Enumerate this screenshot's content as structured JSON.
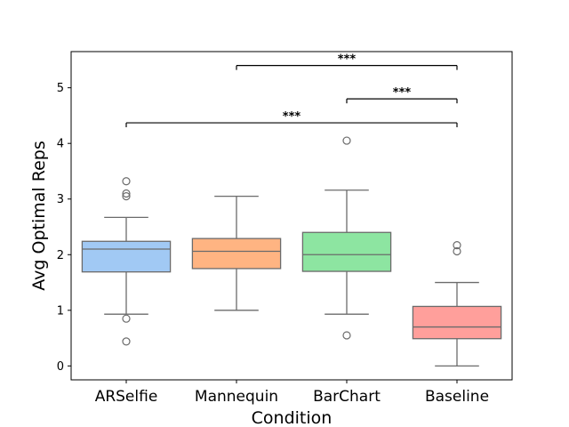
{
  "chart_data": {
    "type": "box",
    "title": "",
    "xlabel": "Condition",
    "ylabel": "Avg Optimal Reps",
    "ylim": [
      -0.25,
      5.65
    ],
    "yticks": [
      0,
      1,
      2,
      3,
      4,
      5
    ],
    "tick_labels": [
      "0",
      "1",
      "2",
      "3",
      "4",
      "5"
    ],
    "grid": false,
    "legend": "none",
    "categories": [
      "ARSelfie",
      "Mannequin",
      "BarChart",
      "Baseline"
    ],
    "boxes": [
      {
        "name": "ARSelfie",
        "color": "#a1c9f4",
        "whisker_low": 0.93,
        "q1": 1.69,
        "median": 2.1,
        "q3": 2.24,
        "whisker_high": 2.67,
        "outliers": [
          0.44,
          0.85,
          3.05,
          3.1,
          3.32
        ]
      },
      {
        "name": "Mannequin",
        "color": "#ffb482",
        "whisker_low": 1.0,
        "q1": 1.75,
        "median": 2.06,
        "q3": 2.29,
        "whisker_high": 3.05,
        "outliers": []
      },
      {
        "name": "BarChart",
        "color": "#8de5a1",
        "whisker_low": 0.93,
        "q1": 1.7,
        "median": 2.0,
        "q3": 2.4,
        "whisker_high": 3.16,
        "outliers": [
          0.55,
          4.05
        ]
      },
      {
        "name": "Baseline",
        "color": "#ff9f9b",
        "whisker_low": 0.0,
        "q1": 0.49,
        "median": 0.7,
        "q3": 1.07,
        "whisker_high": 1.5,
        "outliers": [
          2.06,
          2.17
        ]
      }
    ],
    "significance": [
      {
        "from": "Mannequin",
        "to": "Baseline",
        "y": 5.4,
        "label": "***"
      },
      {
        "from": "BarChart",
        "to": "Baseline",
        "y": 4.8,
        "label": "***"
      },
      {
        "from": "ARSelfie",
        "to": "Baseline",
        "y": 4.37,
        "label": "***"
      }
    ]
  }
}
